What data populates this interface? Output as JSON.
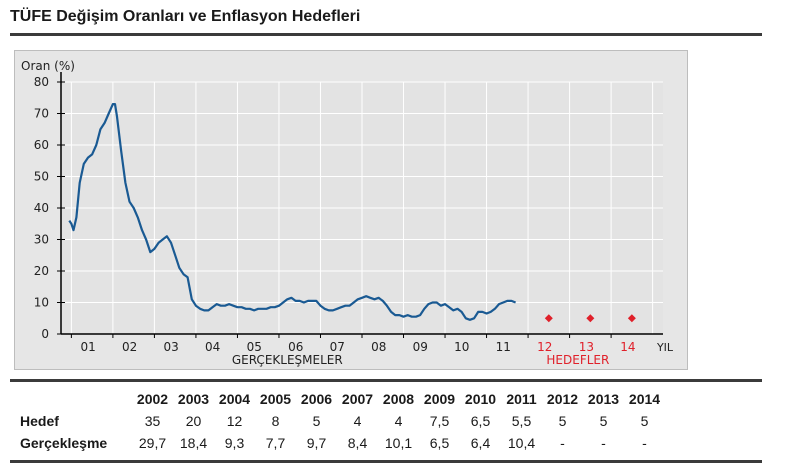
{
  "title": "TÜFE Değişim Oranları ve Enflasyon Hedefleri",
  "chart_data": {
    "type": "line",
    "ylabel": "Oran (%)",
    "xlabel": "YIL",
    "ylim": [
      0,
      80
    ],
    "yticks": [
      0,
      10,
      20,
      30,
      40,
      50,
      60,
      70,
      80
    ],
    "grid": true,
    "x_tick_labels": [
      "01",
      "02",
      "03",
      "04",
      "05",
      "06",
      "07",
      "08",
      "09",
      "10",
      "11",
      "12",
      "13",
      "14"
    ],
    "realized_label": "GERÇEKLEŞMELER",
    "target_label": "HEDEFLER",
    "colors": {
      "realized": "#1a5a93",
      "targets": "#e0202a",
      "target_text": "#e0202a",
      "grid": "#ffffff",
      "axis": "#000000"
    },
    "series": [
      {
        "name": "Gerçekleşme",
        "x": [
          2000.95,
          2001.0,
          2001.05,
          2001.12,
          2001.2,
          2001.3,
          2001.4,
          2001.5,
          2001.6,
          2001.7,
          2001.8,
          2001.9,
          2002.0,
          2002.05,
          2002.1,
          2002.2,
          2002.3,
          2002.4,
          2002.5,
          2002.6,
          2002.7,
          2002.8,
          2002.9,
          2003.0,
          2003.1,
          2003.2,
          2003.3,
          2003.4,
          2003.5,
          2003.6,
          2003.7,
          2003.8,
          2003.9,
          2004.0,
          2004.1,
          2004.2,
          2004.3,
          2004.4,
          2004.5,
          2004.6,
          2004.7,
          2004.8,
          2004.9,
          2005.0,
          2005.1,
          2005.2,
          2005.3,
          2005.4,
          2005.5,
          2005.6,
          2005.7,
          2005.8,
          2005.9,
          2006.0,
          2006.1,
          2006.2,
          2006.3,
          2006.4,
          2006.5,
          2006.6,
          2006.7,
          2006.8,
          2006.9,
          2007.0,
          2007.1,
          2007.2,
          2007.3,
          2007.4,
          2007.5,
          2007.6,
          2007.7,
          2007.8,
          2007.9,
          2008.0,
          2008.1,
          2008.2,
          2008.3,
          2008.4,
          2008.5,
          2008.6,
          2008.7,
          2008.8,
          2008.9,
          2009.0,
          2009.1,
          2009.2,
          2009.3,
          2009.4,
          2009.5,
          2009.6,
          2009.7,
          2009.8,
          2009.9,
          2010.0,
          2010.1,
          2010.2,
          2010.3,
          2010.4,
          2010.5,
          2010.6,
          2010.7,
          2010.8,
          2010.9,
          2011.0,
          2011.1,
          2011.2,
          2011.3,
          2011.4,
          2011.5,
          2011.6,
          2011.7
        ],
        "y": [
          36,
          35,
          33,
          37,
          48,
          54,
          56,
          57,
          60,
          65,
          67,
          70,
          73,
          73,
          69,
          58,
          48,
          42,
          40,
          37,
          33,
          30,
          26,
          27,
          29,
          30,
          31,
          29,
          25,
          21,
          19,
          18,
          11,
          9,
          8,
          7.5,
          7.5,
          8.5,
          9.5,
          9,
          9,
          9.5,
          9,
          8.5,
          8.5,
          8,
          8,
          7.5,
          8,
          8,
          8,
          8.5,
          8.5,
          9,
          10,
          11,
          11.5,
          10.5,
          10.5,
          10,
          10.5,
          10.5,
          10.5,
          9,
          8,
          7.5,
          7.5,
          8,
          8.5,
          9,
          9,
          10,
          11,
          11.5,
          12,
          11.5,
          11,
          11.5,
          10.5,
          9,
          7,
          6,
          6,
          5.5,
          6,
          5.5,
          5.5,
          6,
          8,
          9.5,
          10,
          10,
          9,
          9.5,
          8.5,
          7.5,
          8,
          7,
          5,
          4.5,
          5,
          7,
          7,
          6.5,
          7,
          8,
          9.5,
          10,
          10.5,
          10.5,
          10
        ]
      },
      {
        "name": "Hedef",
        "x": [
          2012.5,
          2013.5,
          2014.5
        ],
        "y": [
          5,
          5,
          5
        ]
      }
    ]
  },
  "table": {
    "years": [
      "2002",
      "2003",
      "2004",
      "2005",
      "2006",
      "2007",
      "2008",
      "2009",
      "2010",
      "2011",
      "2012",
      "2013",
      "2014"
    ],
    "rows": [
      {
        "label": "Hedef",
        "values": [
          "35",
          "20",
          "12",
          "8",
          "5",
          "4",
          "4",
          "7,5",
          "6,5",
          "5,5",
          "5",
          "5",
          "5"
        ]
      },
      {
        "label": "Gerçekleşme",
        "values": [
          "29,7",
          "18,4",
          "9,3",
          "7,7",
          "9,7",
          "8,4",
          "10,1",
          "6,5",
          "6,4",
          "10,4",
          "-",
          "-",
          "-"
        ]
      }
    ]
  }
}
